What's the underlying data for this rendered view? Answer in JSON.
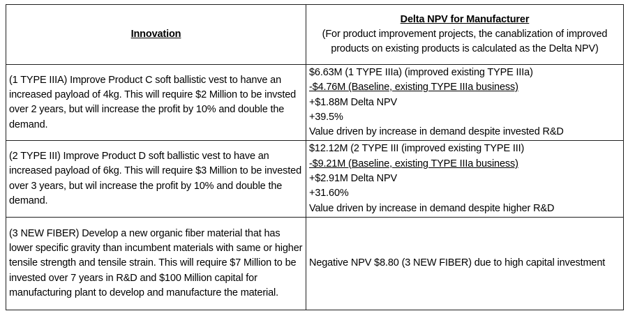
{
  "page": {
    "background_color": "#ffffff",
    "border_color": "#1f1f1f",
    "text_color": "#000000"
  },
  "table": {
    "header": {
      "innovation_label": "Innovation",
      "npv_title": "Delta NPV for Manufacturer",
      "npv_subtitle": "(For product improvement projects, the canablization of improved products on existing products is calculated as the Delta NPV)"
    },
    "rows": [
      {
        "innovation": "(1 TYPE IIIA) Improve Product C soft ballistic vest to hanve an increased payload of 4kg. This will require $2 Million to be invsted over 2 years, but will increase the profit by 10% and double the demand.",
        "npv": [
          {
            "text": "$6.63M (1 TYPE IIIa) (improved existing TYPE IIIa)",
            "underline": false
          },
          {
            "text": "-$4.76M (Baseline, existing TYPE IIIa business)",
            "underline": true
          },
          {
            "text": "+$1.88M Delta NPV",
            "underline": false
          },
          {
            "text": "+39.5%",
            "underline": false
          },
          {
            "text": "Value driven by increase in demand despite invested R&D",
            "underline": false
          }
        ]
      },
      {
        "innovation": "(2 TYPE III) Improve Product D soft ballistic vest to have an increased payload of 6kg. This will require $3 Million to be invested over 3 years, but wil increase the profit by 10% and double the demand.",
        "npv": [
          {
            "text": "$12.12M (2 TYPE III (improved existing TYPE III)",
            "underline": false
          },
          {
            "text": "-$9.21M (Baseline, existing TYPE IIIa business)",
            "underline": true
          },
          {
            "text": "+$2.91M Delta NPV",
            "underline": false
          },
          {
            "text": "+31.60%",
            "underline": false
          },
          {
            "text": "Value driven by increase in demand despite higher R&D",
            "underline": false
          }
        ]
      },
      {
        "innovation": "(3 NEW FIBER) Develop a new organic fiber material that has lower specific gravity than incumbent materials with same or higher tensile strength and tensile strain. This will require $7 Million to be invested over 7 years in R&D and $100 Million capital for manufacturing plant to develop and manufacture the material.",
        "npv": [
          {
            "text": "Negative NPV $8.80 (3 NEW FIBER) due to high capital investment",
            "underline": false
          }
        ]
      }
    ]
  }
}
